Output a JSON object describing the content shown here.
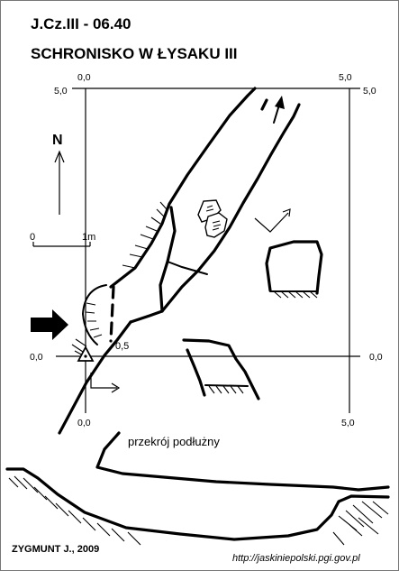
{
  "survey": {
    "code": "J.Cz.III - 06.40",
    "name": "SCHRONISKO W ŁYSAKU III"
  },
  "grid": {
    "top_left_x": "0,0",
    "top_right_x": "5,0",
    "bottom_left_x": "0,0",
    "bottom_right_x": "5,0",
    "left_top_y": "5,0",
    "left_mid_y": "0,0",
    "right_top_y": "5,0",
    "right_mid_y": "0,0"
  },
  "north": {
    "label": "N"
  },
  "scale_bar": {
    "start": "0",
    "end": "1m"
  },
  "entrance_point": {
    "value": "0,5"
  },
  "section": {
    "label": "przekrój podłużny"
  },
  "footer": {
    "author": "ZYGMUNT J., 2009",
    "url": "http://jaskiniepolski.pgi.gov.pl"
  }
}
